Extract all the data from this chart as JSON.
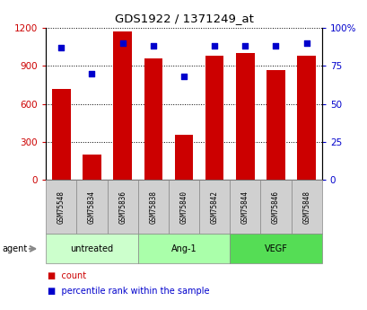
{
  "title": "GDS1922 / 1371249_at",
  "samples": [
    "GSM75548",
    "GSM75834",
    "GSM75836",
    "GSM75838",
    "GSM75840",
    "GSM75842",
    "GSM75844",
    "GSM75846",
    "GSM75848"
  ],
  "counts": [
    720,
    200,
    1175,
    960,
    355,
    980,
    1000,
    870,
    980
  ],
  "percentiles": [
    87,
    70,
    90,
    88,
    68,
    88,
    88,
    88,
    90
  ],
  "groups": [
    {
      "label": "untreated",
      "start": 0,
      "end": 3,
      "color": "#ccffcc"
    },
    {
      "label": "Ang-1",
      "start": 3,
      "end": 6,
      "color": "#aaffaa"
    },
    {
      "label": "VEGF",
      "start": 6,
      "end": 9,
      "color": "#55dd55"
    }
  ],
  "bar_color": "#cc0000",
  "dot_color": "#0000cc",
  "left_axis_color": "#cc0000",
  "right_axis_color": "#0000cc",
  "ylim_left": [
    0,
    1200
  ],
  "ylim_right": [
    0,
    100
  ],
  "left_ticks": [
    0,
    300,
    600,
    900,
    1200
  ],
  "right_ticks": [
    0,
    25,
    50,
    75,
    100
  ],
  "right_tick_labels": [
    "0",
    "25",
    "50",
    "75",
    "100%"
  ],
  "agent_label": "agent",
  "legend_count": "count",
  "legend_percentile": "percentile rank within the sample",
  "sample_box_color": "#d0d0d0",
  "cell_border_color": "#888888"
}
